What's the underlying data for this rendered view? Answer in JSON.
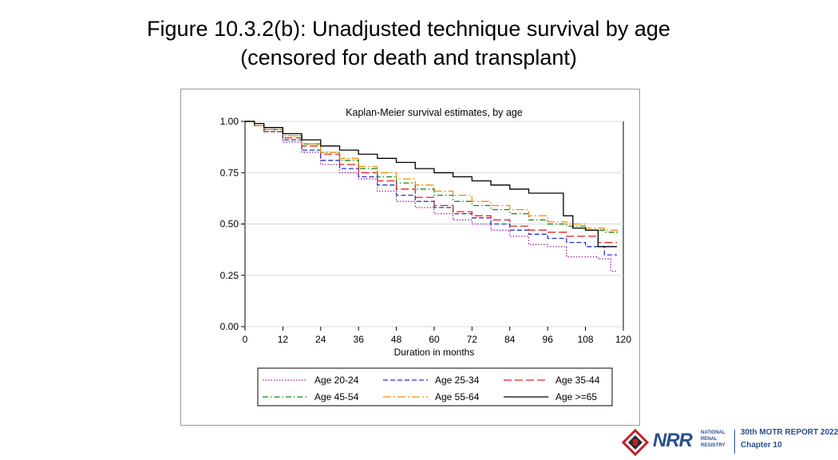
{
  "slide": {
    "title_line1": "Figure 10.3.2(b): Unadjusted technique survival by age",
    "title_line2": "(censored for death and transplant)"
  },
  "footer": {
    "logo_text": "NRR",
    "logo_sub": [
      "NATIONAL",
      "RENAL",
      "REGISTRY"
    ],
    "report": "30th MOTR REPORT 2022",
    "chapter": "Chapter 10"
  },
  "chart_data": {
    "type": "line",
    "title": "Kaplan-Meier survival estimates, by age",
    "xlabel": "Duration in months",
    "ylabel": "",
    "xlim": [
      0,
      120
    ],
    "ylim": [
      0,
      1
    ],
    "xticks": [
      "0",
      "12",
      "24",
      "36",
      "48",
      "60",
      "72",
      "84",
      "96",
      "108",
      "120"
    ],
    "yticks": [
      "0.00",
      "0.25",
      "0.50",
      "0.75",
      "1.00"
    ],
    "grid": true,
    "legend_position": "bottom",
    "series": [
      {
        "name": "Age 20-24",
        "color": "#a020a0",
        "dash": "dotted",
        "x": [
          0,
          3,
          6,
          12,
          18,
          24,
          30,
          36,
          42,
          48,
          54,
          60,
          66,
          72,
          78,
          84,
          90,
          96,
          102,
          108,
          112,
          116,
          118
        ],
        "y": [
          1.0,
          0.98,
          0.95,
          0.9,
          0.85,
          0.79,
          0.75,
          0.72,
          0.66,
          0.61,
          0.58,
          0.55,
          0.52,
          0.5,
          0.47,
          0.44,
          0.4,
          0.39,
          0.34,
          0.34,
          0.33,
          0.27,
          0.27
        ]
      },
      {
        "name": "Age 25-34",
        "color": "#2233cc",
        "dash": "dashed",
        "x": [
          0,
          3,
          6,
          12,
          18,
          24,
          30,
          36,
          42,
          48,
          54,
          60,
          66,
          72,
          78,
          84,
          90,
          96,
          102,
          108,
          114,
          118
        ],
        "y": [
          1.0,
          0.98,
          0.95,
          0.91,
          0.86,
          0.81,
          0.77,
          0.73,
          0.69,
          0.64,
          0.61,
          0.58,
          0.55,
          0.53,
          0.5,
          0.47,
          0.45,
          0.43,
          0.41,
          0.39,
          0.35,
          0.35
        ]
      },
      {
        "name": "Age 35-44",
        "color": "#e02020",
        "dash": "longdash",
        "x": [
          0,
          3,
          6,
          12,
          18,
          24,
          30,
          36,
          42,
          48,
          54,
          60,
          66,
          72,
          78,
          84,
          90,
          96,
          102,
          108,
          112,
          118
        ],
        "y": [
          1.0,
          0.98,
          0.96,
          0.92,
          0.88,
          0.84,
          0.79,
          0.75,
          0.71,
          0.67,
          0.63,
          0.59,
          0.56,
          0.54,
          0.52,
          0.49,
          0.47,
          0.46,
          0.44,
          0.44,
          0.41,
          0.41
        ]
      },
      {
        "name": "Age 45-54",
        "color": "#118811",
        "dash": "dashdot",
        "x": [
          0,
          3,
          6,
          12,
          18,
          24,
          30,
          36,
          42,
          48,
          54,
          60,
          66,
          72,
          78,
          84,
          90,
          96,
          102,
          108,
          114,
          118
        ],
        "y": [
          1.0,
          0.98,
          0.96,
          0.93,
          0.89,
          0.85,
          0.81,
          0.77,
          0.73,
          0.7,
          0.67,
          0.64,
          0.61,
          0.59,
          0.57,
          0.55,
          0.52,
          0.5,
          0.49,
          0.47,
          0.46,
          0.45
        ]
      },
      {
        "name": "Age 55-64",
        "color": "#f09010",
        "dash": "longdashdot",
        "x": [
          0,
          3,
          6,
          12,
          18,
          24,
          30,
          36,
          42,
          48,
          54,
          60,
          66,
          72,
          78,
          84,
          90,
          96,
          102,
          108,
          114,
          118
        ],
        "y": [
          1.0,
          0.98,
          0.96,
          0.93,
          0.89,
          0.85,
          0.82,
          0.78,
          0.75,
          0.72,
          0.69,
          0.66,
          0.64,
          0.61,
          0.59,
          0.57,
          0.54,
          0.51,
          0.5,
          0.48,
          0.47,
          0.45
        ]
      },
      {
        "name": "Age >=65",
        "color": "#000000",
        "dash": "solid",
        "step": true,
        "x": [
          0,
          3,
          6,
          12,
          18,
          24,
          30,
          36,
          42,
          48,
          54,
          60,
          66,
          72,
          78,
          84,
          90,
          96,
          101,
          104,
          108,
          112,
          118
        ],
        "y": [
          1.0,
          0.99,
          0.97,
          0.94,
          0.91,
          0.88,
          0.86,
          0.84,
          0.82,
          0.8,
          0.77,
          0.75,
          0.73,
          0.71,
          0.69,
          0.67,
          0.65,
          0.65,
          0.54,
          0.48,
          0.47,
          0.39,
          0.39
        ]
      }
    ]
  }
}
